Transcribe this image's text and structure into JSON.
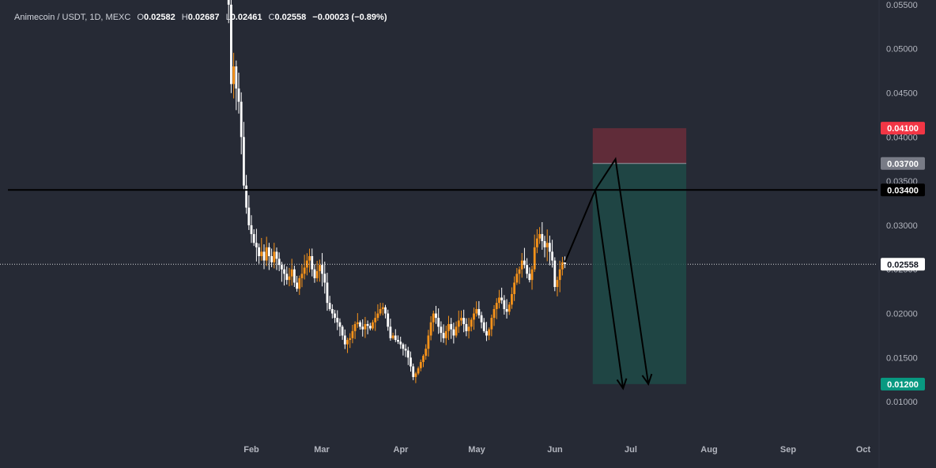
{
  "legend": {
    "symbol": "Animecoin / USDT, 1D, MEXC",
    "o_key": "O",
    "o_val": "0.02582",
    "h_key": "H",
    "h_val": "0.02687",
    "l_key": "L",
    "l_val": "0.02461",
    "c_key": "C",
    "c_val": "0.02558",
    "change": "−0.00023 (−0.89%)"
  },
  "colors": {
    "background": "#262a35",
    "bull": "#f7931a",
    "bear": "#ffffff",
    "stop_zone": "#6b2d3a",
    "target_zone": "#1e4a47",
    "stop_badge": "#f23645",
    "entry_badge": "#787b86",
    "line_badge": "#000000",
    "target_badge": "#089981",
    "last_price_badge": "#ffffff"
  },
  "chart_data": {
    "type": "candlestick",
    "title": "Animecoin / USDT, 1D, MEXC",
    "y_axis": {
      "ticks": [
        "0.05500",
        "0.05000",
        "0.04500",
        "0.04000",
        "0.03500",
        "0.03000",
        "0.02500",
        "0.02000",
        "0.01500",
        "0.01000"
      ],
      "ylim": [
        0.00625,
        0.05535
      ]
    },
    "x_axis": {
      "ticks": [
        "Feb",
        "Mar",
        "Apr",
        "May",
        "Jun",
        "Jul",
        "Aug",
        "Sep",
        "Oct"
      ]
    },
    "price_series": {
      "start": "2025-01-23",
      "closes": [
        0.055,
        0.046,
        0.048,
        0.0455,
        0.044,
        0.04,
        0.0345,
        0.032,
        0.03,
        0.029,
        0.028,
        0.0275,
        0.0265,
        0.027,
        0.026,
        0.0275,
        0.0265,
        0.0258,
        0.027,
        0.0262,
        0.0255,
        0.025,
        0.0245,
        0.0238,
        0.0242,
        0.025,
        0.0235,
        0.0228,
        0.024,
        0.0245,
        0.0252,
        0.026,
        0.0265,
        0.025,
        0.024,
        0.0248,
        0.0255,
        0.0245,
        0.0235,
        0.0212,
        0.0205,
        0.02,
        0.0195,
        0.019,
        0.0185,
        0.0175,
        0.0165,
        0.017,
        0.0172,
        0.018,
        0.0188,
        0.019,
        0.0185,
        0.0182,
        0.0188,
        0.0186,
        0.0183,
        0.019,
        0.0195,
        0.02,
        0.0205,
        0.0207,
        0.02,
        0.0185,
        0.0172,
        0.0175,
        0.017,
        0.0168,
        0.0165,
        0.016,
        0.0158,
        0.015,
        0.014,
        0.0128,
        0.0132,
        0.0138,
        0.0145,
        0.0152,
        0.016,
        0.0175,
        0.019,
        0.02,
        0.0195,
        0.0185,
        0.0178,
        0.0172,
        0.018,
        0.0188,
        0.0182,
        0.0175,
        0.0185,
        0.0192,
        0.0195,
        0.0188,
        0.018,
        0.0185,
        0.0193,
        0.02,
        0.0205,
        0.0198,
        0.019,
        0.018,
        0.0175,
        0.0182,
        0.0195,
        0.0205,
        0.0212,
        0.0218,
        0.0215,
        0.0205,
        0.0202,
        0.021,
        0.0222,
        0.0235,
        0.0245,
        0.025,
        0.026,
        0.0255,
        0.0245,
        0.0238,
        0.025,
        0.0275,
        0.0285,
        0.029,
        0.0282,
        0.0275,
        0.028,
        0.027,
        0.026,
        0.023,
        0.0238,
        0.025,
        0.0258,
        0.0256
      ],
      "last_price": "0.02558"
    },
    "levels": {
      "stop": "0.04100",
      "entry": "0.03700",
      "horizontal_line": "0.03400",
      "target": "0.01200"
    },
    "position_box": {
      "type": "short",
      "start": "2025-06-16",
      "end": "2025-07-23",
      "stop_price": 0.041,
      "entry_price": 0.037,
      "target_price": 0.012
    },
    "horizontal_line": 0.034,
    "projection_path": [
      {
        "date": "2025-06-05",
        "price": 0.0258
      },
      {
        "date": "2025-06-17",
        "price": 0.034
      },
      {
        "date": "2025-06-25",
        "price": 0.0375
      },
      {
        "date": "2025-07-08",
        "price": 0.012
      }
    ],
    "projection_arrow_2": [
      {
        "date": "2025-06-17",
        "price": 0.034
      },
      {
        "date": "2025-06-28",
        "price": 0.0115
      }
    ]
  }
}
